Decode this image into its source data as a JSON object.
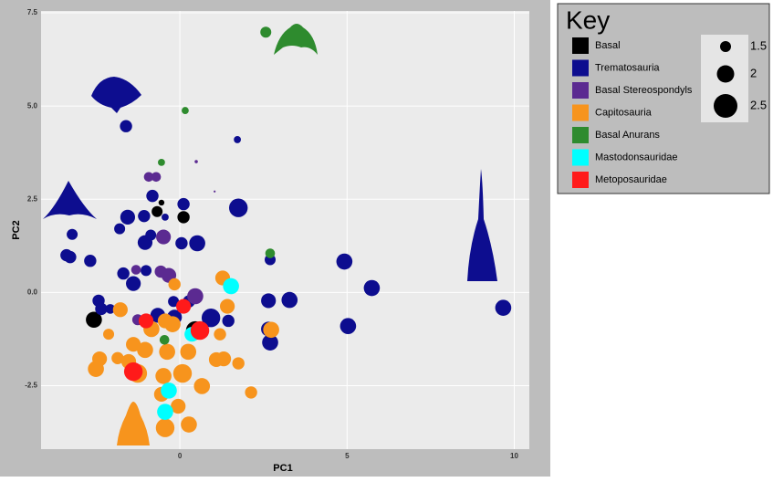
{
  "chart_data": {
    "type": "scatter",
    "xlabel": "PC1",
    "ylabel": "PC2",
    "xlim": [
      -4.15,
      10.45
    ],
    "ylim": [
      -4.2,
      7.55
    ],
    "xticks": [
      0,
      5,
      10
    ],
    "yticks": [
      {
        "value": -2.5,
        "label": "-2.5"
      },
      {
        "value": 0,
        "label": "0.0"
      },
      {
        "value": 2.5,
        "label": "2.5"
      },
      {
        "value": 5,
        "label": "5.0"
      },
      {
        "value": 7.5,
        "label": "7.5"
      }
    ],
    "grid": true,
    "legend_title": "Key",
    "size_legend": [
      1.5,
      2.0,
      2.5
    ],
    "series": [
      {
        "name": "Basal",
        "color": "#000000",
        "x": [
          -2.57,
          0.11,
          -0.68,
          -0.55,
          0.46
        ],
        "y": [
          -0.73,
          2.02,
          2.17,
          2.41,
          -1.02
        ],
        "sizes": [
          1.9,
          1.6,
          1.5,
          1.1,
          2.1
        ]
      },
      {
        "name": "Trematosauria",
        "color": "#0d0d8f",
        "x": [
          -1.61,
          1.72,
          0.11,
          1.75,
          -1.56,
          -0.82,
          -1.07,
          -0.44,
          -1.8,
          -3.22,
          -3.39,
          -3.28,
          -2.68,
          -1.04,
          -0.87,
          0.52,
          0.05,
          2.7,
          4.92,
          5.74,
          9.67,
          5.03,
          3.28,
          2.65,
          2.7,
          2.65,
          -2.43,
          -2.35,
          -1.69,
          -1.01,
          -1.39,
          -0.66,
          -0.16,
          0.93,
          1.45,
          0.27,
          -0.19,
          -2.08
        ],
        "y": [
          4.46,
          4.1,
          2.37,
          2.27,
          2.02,
          2.59,
          2.05,
          2.02,
          1.71,
          1.56,
          1.0,
          0.95,
          0.85,
          1.34,
          1.54,
          1.32,
          1.32,
          0.88,
          0.83,
          0.12,
          -0.41,
          -0.9,
          -0.2,
          -0.22,
          -1.34,
          -0.98,
          -0.22,
          -0.44,
          0.51,
          0.59,
          0.24,
          -0.61,
          -0.66,
          -0.68,
          -0.76,
          -0.24,
          -0.24,
          -0.44
        ],
        "sizes": [
          1.6,
          1.2,
          1.6,
          2.1,
          1.8,
          1.6,
          1.6,
          1.2,
          1.5,
          1.5,
          1.6,
          1.6,
          1.6,
          1.8,
          1.5,
          1.9,
          1.6,
          1.5,
          1.9,
          1.9,
          1.9,
          1.9,
          1.9,
          1.8,
          1.9,
          1.8,
          1.6,
          1.6,
          1.6,
          1.5,
          1.8,
          1.8,
          1.8,
          2.1,
          1.6,
          1.6,
          1.5,
          1.4
        ]
      },
      {
        "name": "Basal Stereospondyls",
        "color": "#5b2a91",
        "x": [
          -0.93,
          -0.71,
          0.49,
          1.04,
          -0.49,
          -1.31,
          -0.57,
          -0.33,
          0.46,
          -1.26
        ],
        "y": [
          3.1,
          3.1,
          3.51,
          2.71,
          1.49,
          0.61,
          0.56,
          0.46,
          -0.1,
          -0.73
        ],
        "sizes": [
          1.4,
          1.4,
          0.9,
          0.8,
          1.8,
          1.4,
          1.6,
          1.8,
          1.9,
          1.5
        ]
      },
      {
        "name": "Capitosauria",
        "color": "#f7941d",
        "x": [
          1.28,
          -0.16,
          1.42,
          -1.78,
          -0.85,
          -1.04,
          -1.39,
          -2.13,
          -2.4,
          -2.51,
          -1.86,
          -1.53,
          -0.38,
          -0.44,
          -0.22,
          0.25,
          0.08,
          -0.49,
          -0.55,
          -0.05,
          -0.44,
          0.27,
          0.66,
          1.09,
          1.31,
          1.75,
          2.13,
          1.2,
          2.73,
          -1.26
        ],
        "y": [
          0.39,
          0.22,
          -0.37,
          -0.46,
          -0.98,
          -1.54,
          -1.39,
          -1.12,
          -1.78,
          -2.05,
          -1.76,
          -1.85,
          -1.59,
          -0.76,
          -0.85,
          -1.59,
          -2.17,
          -2.24,
          -2.73,
          -3.05,
          -3.63,
          -3.54,
          -2.51,
          -1.8,
          -1.78,
          -1.9,
          -2.68,
          -1.12,
          -1.0,
          -2.17
        ],
        "sizes": [
          1.8,
          1.6,
          1.8,
          1.8,
          1.9,
          1.9,
          1.8,
          1.5,
          1.8,
          1.9,
          1.6,
          1.8,
          1.9,
          1.8,
          1.9,
          1.9,
          2.1,
          1.9,
          1.8,
          1.8,
          2.1,
          1.9,
          1.9,
          1.8,
          1.8,
          1.6,
          1.6,
          1.6,
          1.9,
          2.1
        ]
      },
      {
        "name": "Basal Anurans",
        "color": "#2e8b2e",
        "x": [
          2.57,
          0.16,
          -0.55,
          2.7,
          -0.46
        ],
        "y": [
          6.98,
          4.88,
          3.49,
          1.05,
          -1.27
        ],
        "sizes": [
          1.5,
          1.2,
          1.2,
          1.4,
          1.4
        ]
      },
      {
        "name": "Mastodonsauridae",
        "color": "#00ffff",
        "x": [
          1.53,
          0.36,
          -0.33,
          -0.44
        ],
        "y": [
          0.17,
          -1.12,
          -2.63,
          -3.2
        ],
        "sizes": [
          1.9,
          1.8,
          1.9,
          1.9
        ]
      },
      {
        "name": "Metoposauridae",
        "color": "#ff1a1a",
        "x": [
          -1.39,
          0.11,
          -1.01,
          0.6
        ],
        "y": [
          -2.12,
          -0.37,
          -0.76,
          -1.02
        ],
        "sizes": [
          2.1,
          1.8,
          1.8,
          2.1
        ]
      }
    ]
  }
}
